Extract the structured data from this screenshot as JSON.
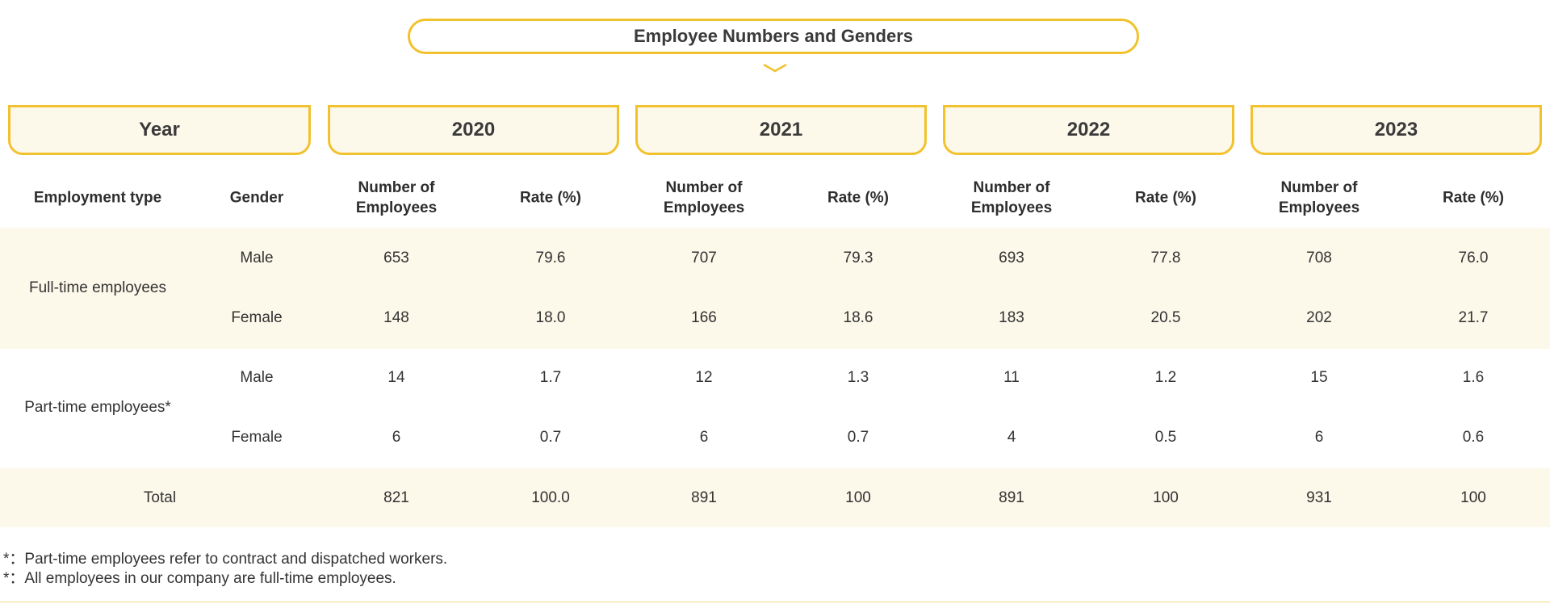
{
  "title": "Employee Numbers and Genders",
  "accent_color": "#f2c22e",
  "band_color": "#fcf8ea",
  "year_header": {
    "label": "Year",
    "years": [
      "2020",
      "2021",
      "2022",
      "2023"
    ]
  },
  "columns": {
    "employment_type": "Employment type",
    "gender": "Gender",
    "number_of_employees_line1": "Number of",
    "number_of_employees_line2": "Employees",
    "rate": "Rate (%)"
  },
  "rows": {
    "full_time": {
      "label": "Full-time employees",
      "male": {
        "gender": "Male",
        "values": [
          "653",
          "79.6",
          "707",
          "79.3",
          "693",
          "77.8",
          "708",
          "76.0"
        ]
      },
      "female": {
        "gender": "Female",
        "values": [
          "148",
          "18.0",
          "166",
          "18.6",
          "183",
          "20.5",
          "202",
          "21.7"
        ]
      }
    },
    "part_time": {
      "label": "Part-time employees*",
      "male": {
        "gender": "Male",
        "values": [
          "14",
          "1.7",
          "12",
          "1.3",
          "11",
          "1.2",
          "15",
          "1.6"
        ]
      },
      "female": {
        "gender": "Female",
        "values": [
          "6",
          "0.7",
          "6",
          "0.7",
          "4",
          "0.5",
          "6",
          "0.6"
        ]
      }
    },
    "total": {
      "label": "Total",
      "values": [
        "821",
        "100.0",
        "891",
        "100",
        "891",
        "100",
        "931",
        "100"
      ]
    }
  },
  "footnotes": [
    "*：Part-time employees refer to contract and dispatched workers.",
    "*：All employees in our company are full-time employees."
  ]
}
